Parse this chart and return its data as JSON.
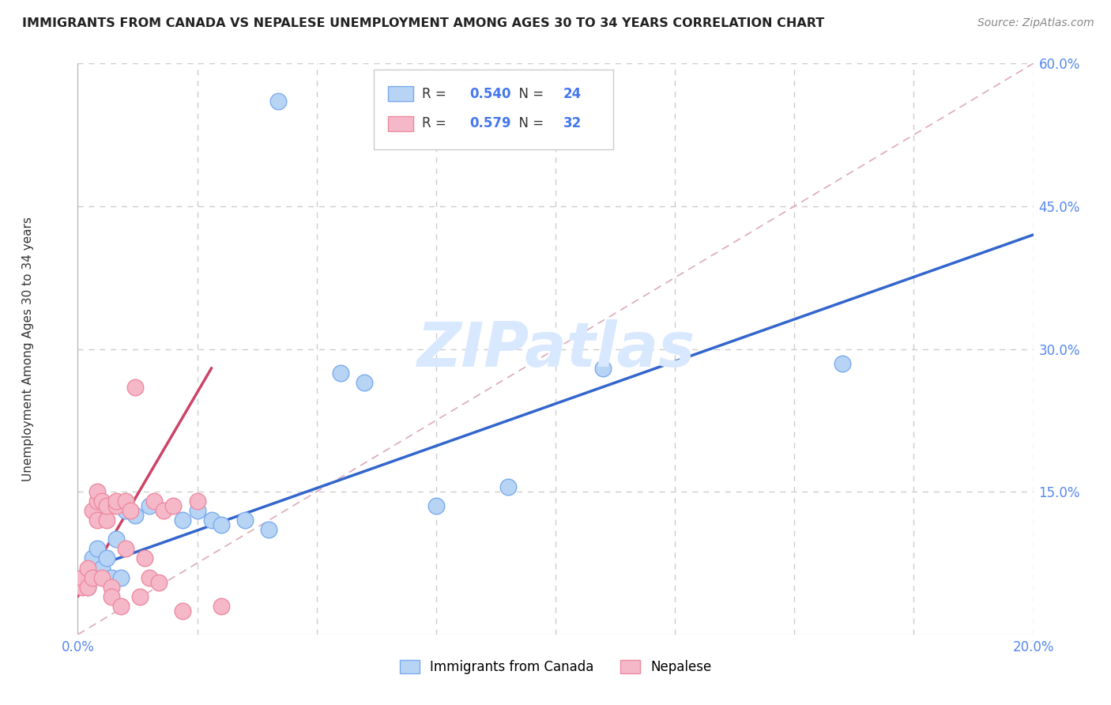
{
  "title": "IMMIGRANTS FROM CANADA VS NEPALESE UNEMPLOYMENT AMONG AGES 30 TO 34 YEARS CORRELATION CHART",
  "source": "Source: ZipAtlas.com",
  "ylabel": "Unemployment Among Ages 30 to 34 years",
  "xlim": [
    0.0,
    0.2
  ],
  "ylim": [
    0.0,
    0.6
  ],
  "xticks": [
    0.0,
    0.025,
    0.05,
    0.075,
    0.1,
    0.125,
    0.15,
    0.175,
    0.2
  ],
  "xticklabels": [
    "0.0%",
    "",
    "",
    "",
    "",
    "",
    "",
    "",
    "20.0%"
  ],
  "yticks": [
    0.0,
    0.15,
    0.3,
    0.45,
    0.6
  ],
  "yticklabels": [
    "",
    "15.0%",
    "30.0%",
    "45.0%",
    "60.0%"
  ],
  "blue_R": "0.540",
  "blue_N": "24",
  "pink_R": "0.579",
  "pink_N": "32",
  "blue_color": "#b8d4f5",
  "pink_color": "#f5b8c8",
  "blue_edge_color": "#7aabee",
  "pink_edge_color": "#ee8aa0",
  "blue_line_color": "#3366cc",
  "pink_line_color": "#cc4466",
  "ref_line_color": "#ddaabb",
  "grid_color": "#cccccc",
  "watermark_color": "#d8e8ff",
  "blue_points_x": [
    0.002,
    0.003,
    0.003,
    0.004,
    0.005,
    0.006,
    0.007,
    0.008,
    0.009,
    0.01,
    0.012,
    0.015,
    0.022,
    0.025,
    0.028,
    0.03,
    0.035,
    0.04,
    0.055,
    0.06,
    0.075,
    0.09,
    0.11,
    0.16
  ],
  "blue_points_y": [
    0.05,
    0.06,
    0.08,
    0.09,
    0.07,
    0.08,
    0.06,
    0.1,
    0.06,
    0.13,
    0.125,
    0.135,
    0.12,
    0.13,
    0.12,
    0.115,
    0.12,
    0.11,
    0.275,
    0.265,
    0.135,
    0.155,
    0.28,
    0.285
  ],
  "pink_points_x": [
    0.001,
    0.001,
    0.002,
    0.002,
    0.003,
    0.003,
    0.004,
    0.004,
    0.004,
    0.005,
    0.005,
    0.006,
    0.006,
    0.007,
    0.007,
    0.008,
    0.008,
    0.009,
    0.01,
    0.01,
    0.011,
    0.012,
    0.013,
    0.014,
    0.015,
    0.016,
    0.017,
    0.018,
    0.02,
    0.022,
    0.025,
    0.03
  ],
  "pink_points_y": [
    0.05,
    0.06,
    0.05,
    0.07,
    0.06,
    0.13,
    0.12,
    0.14,
    0.15,
    0.14,
    0.06,
    0.12,
    0.135,
    0.05,
    0.04,
    0.135,
    0.14,
    0.03,
    0.14,
    0.09,
    0.13,
    0.26,
    0.04,
    0.08,
    0.06,
    0.14,
    0.055,
    0.13,
    0.135,
    0.025,
    0.14,
    0.03
  ],
  "blue_outlier_x": [
    0.042
  ],
  "blue_outlier_y": [
    0.56
  ],
  "blue_trend_x": [
    0.0,
    0.2
  ],
  "blue_trend_y": [
    0.065,
    0.42
  ],
  "pink_trend_x": [
    0.0,
    0.028
  ],
  "pink_trend_y": [
    0.04,
    0.28
  ],
  "ref_line_x": [
    0.0,
    0.2
  ],
  "ref_line_y": [
    0.0,
    0.6
  ],
  "scatter_size": 220,
  "legend_blue_label": "Immigrants from Canada",
  "legend_pink_label": "Nepalese"
}
